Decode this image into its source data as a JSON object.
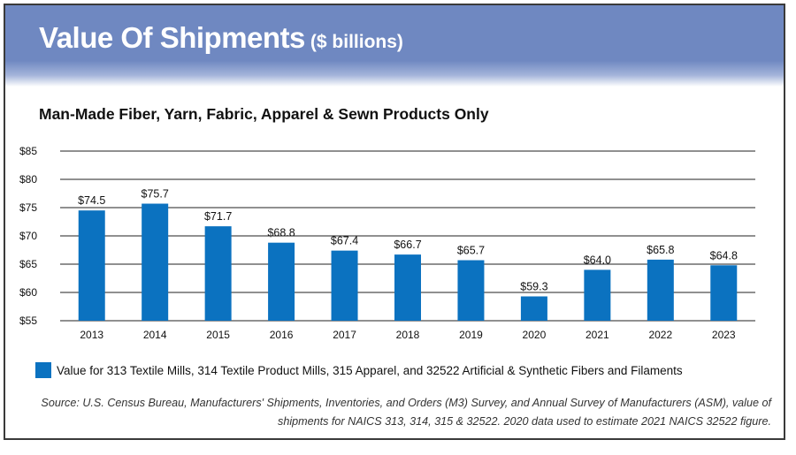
{
  "banner": {
    "title": "Value Of Shipments",
    "title_unit": "($ billions)"
  },
  "colors": {
    "banner": "#6f88c1",
    "bar": "#0b72c0",
    "gridline": "#222222"
  },
  "legend": {
    "label": "Value for 313 Textile Mills, 314 Textile Product Mills, 315 Apparel, and 32522 Artificial & Synthetic Fibers and Filaments"
  },
  "source_note": "Source: U.S. Census Bureau, Manufacturers' Shipments, Inventories, and Orders (M3) Survey, and Annual Survey of Manufacturers (ASM), value of shipments for NAICS 313, 314, 315 & 32522.  2020 data used to estimate 2021 NAICS 32522 figure.",
  "chart_data": {
    "type": "bar",
    "title": "Man-Made Fiber, Yarn, Fabric, Apparel & Sewn Products Only",
    "categories": [
      "2013",
      "2014",
      "2015",
      "2016",
      "2017",
      "2018",
      "2019",
      "2020",
      "2021",
      "2022",
      "2023"
    ],
    "series": [
      {
        "name": "Value for 313 Textile Mills, 314 Textile Product Mills, 315 Apparel, and 32522 Artificial & Synthetic Fibers and Filaments",
        "values": [
          74.5,
          75.7,
          71.7,
          68.8,
          67.4,
          66.7,
          65.7,
          59.3,
          64.0,
          65.8,
          64.8
        ],
        "data_labels": [
          "$74.5",
          "$75.7",
          "$71.7",
          "$68.8",
          "$67.4",
          "$66.7",
          "$65.7",
          "$59.3",
          "$64.0",
          "$65.8",
          "$64.8"
        ]
      }
    ],
    "y_ticks": [
      55,
      60,
      65,
      70,
      75,
      80,
      85
    ],
    "y_tick_labels": [
      "$55",
      "$60",
      "$65",
      "$70",
      "$75",
      "$80",
      "$85"
    ],
    "ylim": [
      55,
      85
    ],
    "xlabel": "",
    "ylabel": "",
    "grid": true,
    "legend_position": "bottom"
  }
}
